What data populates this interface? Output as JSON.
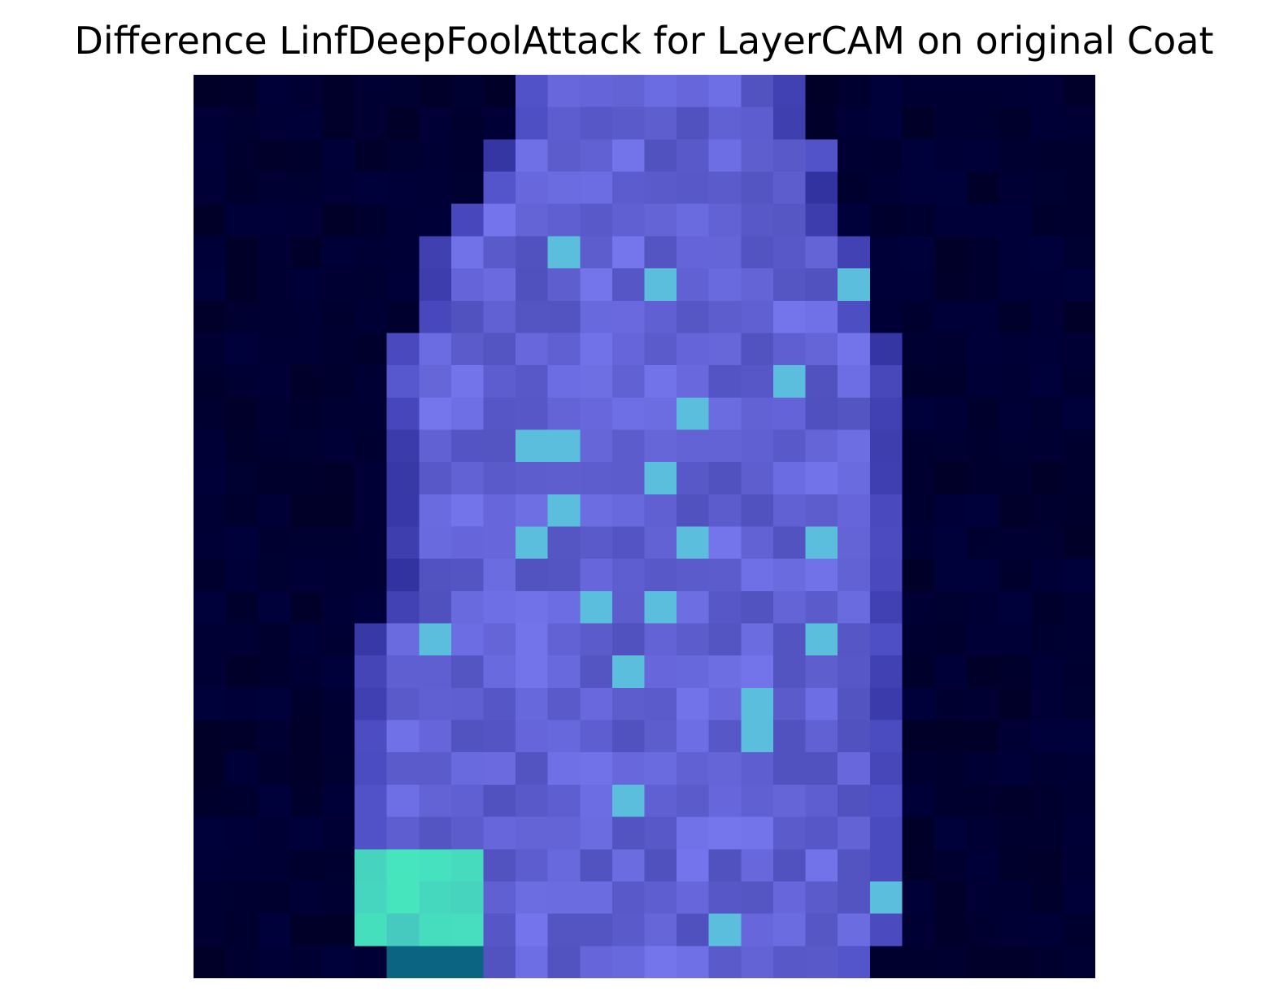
{
  "figure": {
    "title": "Difference LinfDeepFoolAttack for LayerCAM on original Coat"
  },
  "image": {
    "description_icon": "heatmap-image-icon",
    "background_color": "#00003c",
    "colormap": [
      "#00003c",
      "#4c4cd6",
      "#7a7af0",
      "#5fd0e0",
      "#86d890"
    ]
  }
}
